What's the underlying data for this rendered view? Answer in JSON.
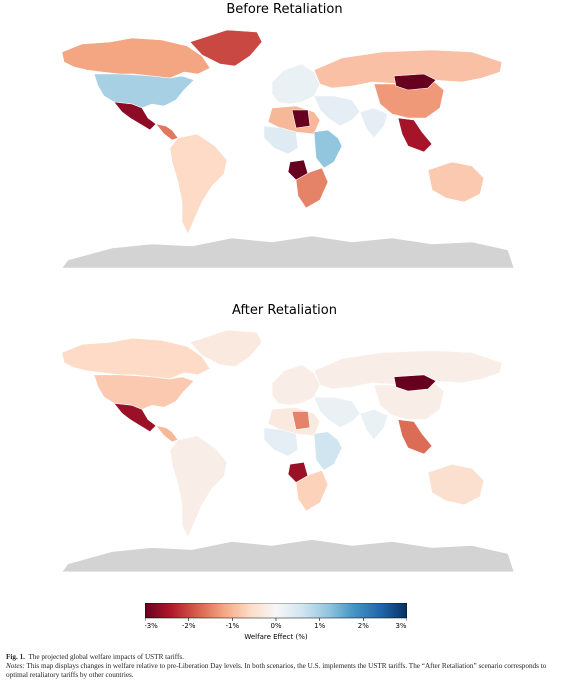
{
  "chart_data": [
    {
      "type": "choropleth map",
      "title": "Before Retaliation",
      "regions": [
        {
          "name": "United States",
          "value": 1.0
        },
        {
          "name": "Canada",
          "value": -1.2
        },
        {
          "name": "Greenland",
          "value": -2.0
        },
        {
          "name": "Mexico",
          "value": -2.7
        },
        {
          "name": "Central America",
          "value": -1.6
        },
        {
          "name": "South America",
          "value": -0.6
        },
        {
          "name": "Europe",
          "value": 0.2
        },
        {
          "name": "Russia",
          "value": -0.9
        },
        {
          "name": "China",
          "value": -1.3
        },
        {
          "name": "Mongolia",
          "value": -3.0
        },
        {
          "name": "Middle East",
          "value": 0.3
        },
        {
          "name": "North Africa",
          "value": -1.0
        },
        {
          "name": "Libya",
          "value": -3.0
        },
        {
          "name": "West Africa",
          "value": 0.4
        },
        {
          "name": "Angola",
          "value": -3.0
        },
        {
          "name": "Southern Africa",
          "value": -1.5
        },
        {
          "name": "East Africa",
          "value": 1.2
        },
        {
          "name": "India",
          "value": 0.3
        },
        {
          "name": "Southeast Asia",
          "value": -2.5
        },
        {
          "name": "Australia",
          "value": -0.8
        },
        {
          "name": "Antarctica",
          "value": null
        }
      ]
    },
    {
      "type": "choropleth map",
      "title": "After Retaliation",
      "regions": [
        {
          "name": "United States",
          "value": -0.8
        },
        {
          "name": "Canada",
          "value": -0.6
        },
        {
          "name": "Greenland",
          "value": -0.3
        },
        {
          "name": "Mexico",
          "value": -2.6
        },
        {
          "name": "Central America",
          "value": -1.0
        },
        {
          "name": "South America",
          "value": -0.2
        },
        {
          "name": "Europe",
          "value": -0.2
        },
        {
          "name": "Russia",
          "value": -0.2
        },
        {
          "name": "China",
          "value": -0.2
        },
        {
          "name": "Mongolia",
          "value": -3.0
        },
        {
          "name": "Middle East",
          "value": 0.2
        },
        {
          "name": "North Africa",
          "value": -0.3
        },
        {
          "name": "Libya",
          "value": -1.5
        },
        {
          "name": "West Africa",
          "value": 0.3
        },
        {
          "name": "Angola",
          "value": -2.6
        },
        {
          "name": "Southern Africa",
          "value": -0.7
        },
        {
          "name": "East Africa",
          "value": 0.6
        },
        {
          "name": "India",
          "value": 0.2
        },
        {
          "name": "Southeast Asia",
          "value": -1.7
        },
        {
          "name": "Australia",
          "value": -0.5
        },
        {
          "name": "Antarctica",
          "value": null
        }
      ]
    }
  ],
  "colorbar": {
    "label": "Welfare Effect (%)",
    "range": [
      -3,
      3
    ],
    "ticks": [
      "-3%",
      "-2%",
      "-1%",
      "0%",
      "1%",
      "2%",
      "3%"
    ],
    "colors": [
      "#67001f",
      "#b2182b",
      "#d6604d",
      "#f4a582",
      "#fddbc7",
      "#f7f7f7",
      "#d1e5f0",
      "#92c5de",
      "#4393c3",
      "#2166ac",
      "#053061"
    ],
    "missing_color": "#d3d3d3"
  },
  "caption": {
    "fig_label": "Fig. 1.",
    "fig_text": "The projected global welfare impacts of USTR tariffs.",
    "notes_label": "Notes:",
    "notes_text": "This map displays changes in welfare relative to pre-Liberation Day levels. In both scenarios, the U.S. implements the USTR tariffs. The “After Retaliation” scenario corresponds to optimal retaliatory tariffs by other countries."
  }
}
